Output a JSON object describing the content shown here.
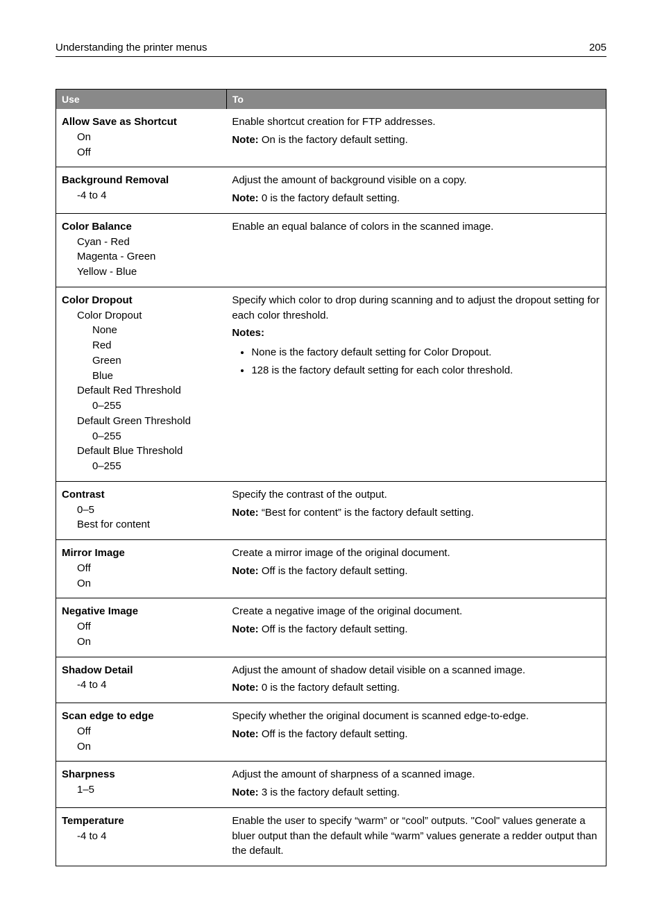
{
  "header": {
    "title": "Understanding the printer menus",
    "page": "205"
  },
  "table": {
    "columns": [
      "Use",
      "To"
    ],
    "rows": [
      {
        "title": "Allow Save as Shortcut",
        "options": [
          {
            "label": "On",
            "level": 1
          },
          {
            "label": "Off",
            "level": 1
          }
        ],
        "desc_lines": [
          {
            "text": "Enable shortcut creation for FTP addresses."
          },
          {
            "note": "Note:",
            "text": " On is the factory default setting."
          }
        ]
      },
      {
        "title": "Background Removal",
        "options": [
          {
            "label": "‑4 to 4",
            "level": 1
          }
        ],
        "desc_lines": [
          {
            "text": "Adjust the amount of background visible on a copy."
          },
          {
            "note": "Note:",
            "text": " 0 is the factory default setting."
          }
        ]
      },
      {
        "title": "Color Balance",
        "options": [
          {
            "label": "Cyan - Red",
            "level": 1
          },
          {
            "label": "Magenta - Green",
            "level": 1
          },
          {
            "label": "Yellow - Blue",
            "level": 1
          }
        ],
        "desc_lines": [
          {
            "text": "Enable an equal balance of colors in the scanned image."
          }
        ]
      },
      {
        "title": "Color Dropout",
        "options": [
          {
            "label": "Color Dropout",
            "level": 1
          },
          {
            "label": "None",
            "level": 2
          },
          {
            "label": "Red",
            "level": 2
          },
          {
            "label": "Green",
            "level": 2
          },
          {
            "label": "Blue",
            "level": 2
          },
          {
            "label": "Default Red Threshold",
            "level": 1
          },
          {
            "label": "0–255",
            "level": 2
          },
          {
            "label": "Default Green Threshold",
            "level": 1
          },
          {
            "label": "0–255",
            "level": 2
          },
          {
            "label": "Default Blue Threshold",
            "level": 1
          },
          {
            "label": "0–255",
            "level": 2
          }
        ],
        "desc_lines": [
          {
            "text": "Specify which color to drop during scanning and to adjust the dropout setting for each color threshold."
          },
          {
            "note": "Notes:"
          }
        ],
        "bullets": [
          "None is the factory default setting for Color Dropout.",
          "128 is the factory default setting for each color threshold."
        ]
      },
      {
        "title": "Contrast",
        "options": [
          {
            "label": "0–5",
            "level": 1
          },
          {
            "label": "Best for content",
            "level": 1
          }
        ],
        "desc_lines": [
          {
            "text": "Specify the contrast of the output."
          },
          {
            "note": "Note:",
            "text": " “Best for content” is the factory default setting."
          }
        ]
      },
      {
        "title": "Mirror Image",
        "options": [
          {
            "label": "Off",
            "level": 1
          },
          {
            "label": "On",
            "level": 1
          }
        ],
        "desc_lines": [
          {
            "text": "Create a mirror image of the original document."
          },
          {
            "note": "Note:",
            "text": " Off is the factory default setting."
          }
        ]
      },
      {
        "title": "Negative Image",
        "options": [
          {
            "label": "Off",
            "level": 1
          },
          {
            "label": "On",
            "level": 1
          }
        ],
        "desc_lines": [
          {
            "text": "Create a negative image of the original document."
          },
          {
            "note": "Note:",
            "text": " Off is the factory default setting."
          }
        ]
      },
      {
        "title": "Shadow Detail",
        "options": [
          {
            "label": "‑4 to 4",
            "level": 1
          }
        ],
        "desc_lines": [
          {
            "text": "Adjust the amount of shadow detail visible on a scanned image."
          },
          {
            "note": "Note:",
            "text": " 0 is the factory default setting."
          }
        ]
      },
      {
        "title": "Scan edge to edge",
        "options": [
          {
            "label": "Off",
            "level": 1
          },
          {
            "label": "On",
            "level": 1
          }
        ],
        "desc_lines": [
          {
            "text": "Specify whether the original document is scanned edge‑to‑edge."
          },
          {
            "note": "Note:",
            "text": " Off is the factory default setting."
          }
        ]
      },
      {
        "title": "Sharpness",
        "options": [
          {
            "label": "1–5",
            "level": 1
          }
        ],
        "desc_lines": [
          {
            "text": "Adjust the amount of sharpness of a scanned image."
          },
          {
            "note": "Note:",
            "text": " 3 is the factory default setting."
          }
        ]
      },
      {
        "title": "Temperature",
        "options": [
          {
            "label": "‑4 to 4",
            "level": 1
          }
        ],
        "desc_lines": [
          {
            "text": "Enable the user to specify “warm” or “cool” outputs. \"Cool\" values generate a bluer output than the default while “warm” values generate a redder output than the default."
          }
        ]
      }
    ]
  }
}
